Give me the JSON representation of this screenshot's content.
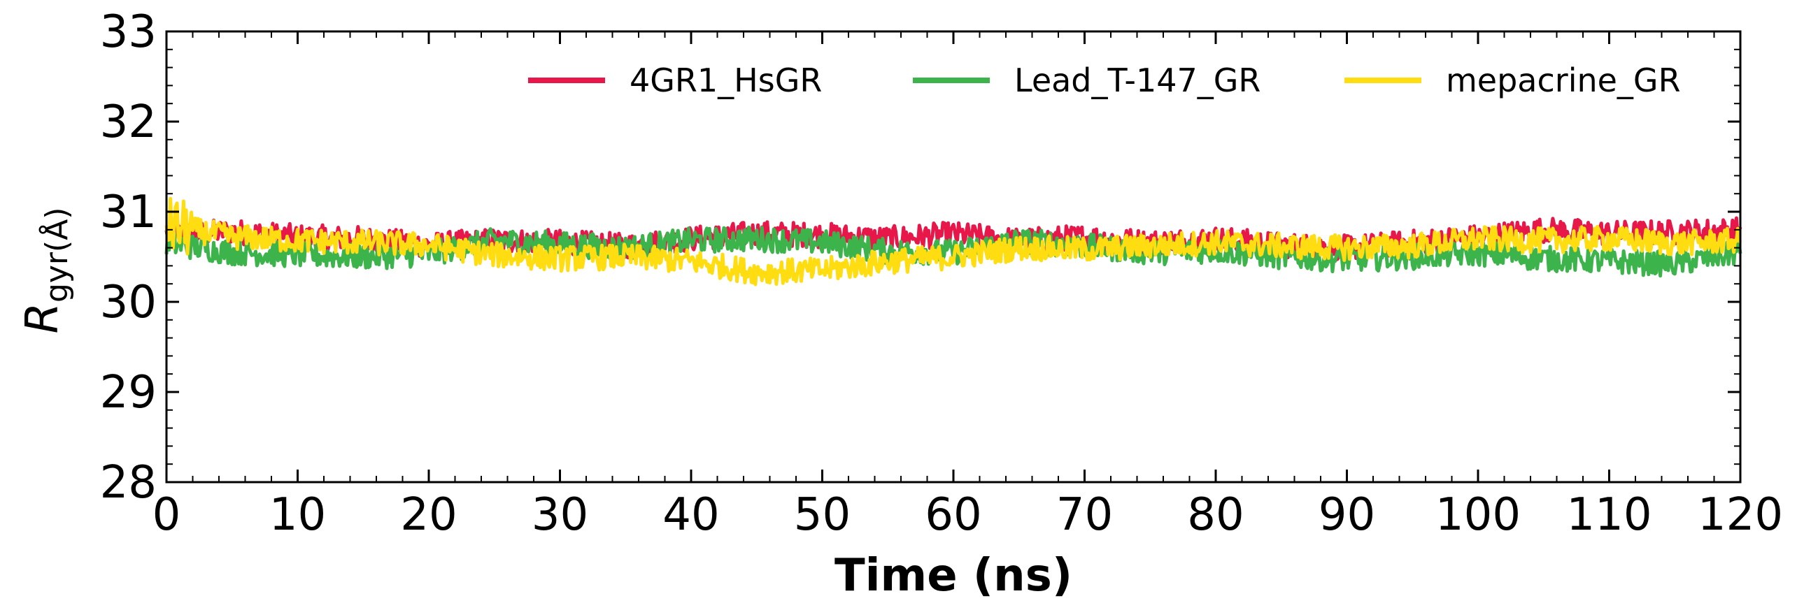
{
  "chart_data": {
    "type": "line",
    "title": "",
    "xlabel": "Time (ns)",
    "ylabel_main": "R",
    "ylabel_sub": "gyr",
    "ylabel_unit": "(Å)",
    "xlim": [
      0,
      120
    ],
    "ylim": [
      28,
      33
    ],
    "xticks": [
      0,
      10,
      20,
      30,
      40,
      50,
      60,
      70,
      80,
      90,
      100,
      110,
      120
    ],
    "yticks": [
      28,
      29,
      30,
      31,
      32,
      33
    ],
    "grid": false,
    "legend_position": "top-right",
    "series": [
      {
        "name": "4GR1_HsGR",
        "color": "#e8174a",
        "x": [
          0,
          5,
          10,
          15,
          20,
          25,
          30,
          35,
          40,
          45,
          50,
          55,
          60,
          65,
          70,
          75,
          80,
          85,
          90,
          95,
          100,
          105,
          110,
          115,
          120
        ],
        "y": [
          30.75,
          30.78,
          30.72,
          30.7,
          30.63,
          30.68,
          30.66,
          30.62,
          30.7,
          30.76,
          30.74,
          30.7,
          30.75,
          30.68,
          30.72,
          30.66,
          30.7,
          30.63,
          30.6,
          30.66,
          30.72,
          30.8,
          30.76,
          30.77,
          30.8
        ]
      },
      {
        "name": "Lead_T-147_GR",
        "color": "#3cb44b",
        "x": [
          0,
          5,
          10,
          15,
          20,
          25,
          30,
          35,
          40,
          45,
          50,
          55,
          60,
          65,
          70,
          75,
          80,
          85,
          90,
          95,
          100,
          105,
          110,
          115,
          120
        ],
        "y": [
          30.65,
          30.55,
          30.52,
          30.5,
          30.53,
          30.68,
          30.64,
          30.6,
          30.68,
          30.7,
          30.66,
          30.56,
          30.55,
          30.68,
          30.62,
          30.55,
          30.57,
          30.5,
          30.47,
          30.5,
          30.54,
          30.48,
          30.45,
          30.42,
          30.55
        ]
      },
      {
        "name": "mepacrine_GR",
        "color": "#ffdd11",
        "x": [
          0,
          5,
          10,
          15,
          20,
          25,
          30,
          35,
          40,
          45,
          50,
          55,
          60,
          65,
          70,
          75,
          80,
          85,
          90,
          95,
          100,
          105,
          110,
          115,
          120
        ],
        "y": [
          30.85,
          30.72,
          30.68,
          30.66,
          30.63,
          30.52,
          30.48,
          30.5,
          30.45,
          30.33,
          30.35,
          30.45,
          30.5,
          30.6,
          30.58,
          30.62,
          30.66,
          30.62,
          30.6,
          30.62,
          30.7,
          30.68,
          30.7,
          30.65,
          30.68
        ]
      }
    ]
  }
}
